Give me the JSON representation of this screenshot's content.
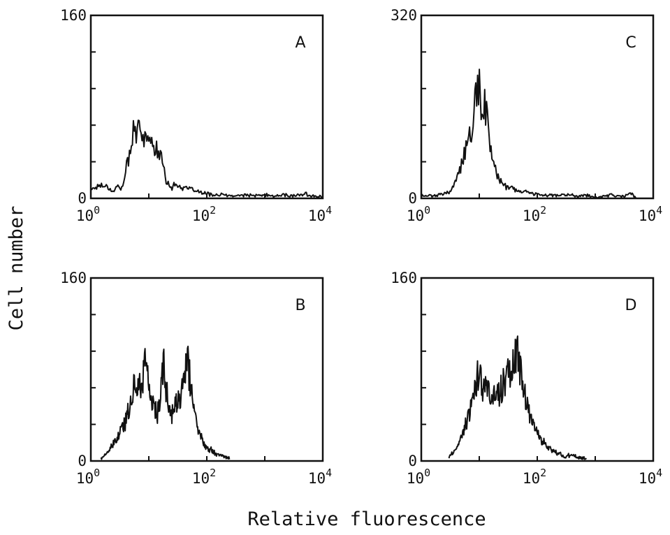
{
  "figure": {
    "y_axis_label": "Cell number",
    "x_axis_label": "Relative fluorescence"
  },
  "chart_data": [
    {
      "type": "area",
      "panel": "A",
      "xscale": "log",
      "xlim": [
        1,
        10000
      ],
      "ylim": [
        0,
        160
      ],
      "y_ticks": [
        "160",
        "0"
      ],
      "x_ticks": [
        {
          "base": "10",
          "exp": "0"
        },
        {
          "base": "10",
          "exp": "2"
        },
        {
          "base": "10",
          "exp": "4"
        }
      ],
      "x": [
        1,
        1.5,
        2,
        2.5,
        3,
        3.5,
        4,
        5,
        5.5,
        6,
        7,
        8,
        9,
        10,
        12,
        14,
        16,
        18,
        20,
        25,
        30,
        40,
        50,
        60,
        80,
        100,
        150,
        200,
        300,
        500,
        700,
        1000,
        1500,
        2000,
        3000,
        5000,
        7000,
        10000
      ],
      "y": [
        8,
        12,
        10,
        6,
        12,
        8,
        25,
        42,
        75,
        55,
        60,
        48,
        62,
        45,
        50,
        42,
        35,
        30,
        15,
        10,
        12,
        9,
        8,
        7,
        5,
        4,
        3,
        3,
        2,
        3,
        2,
        3,
        2,
        3,
        2,
        4,
        2,
        1
      ]
    },
    {
      "type": "area",
      "panel": "B",
      "xscale": "log",
      "xlim": [
        1,
        10000
      ],
      "ylim": [
        0,
        160
      ],
      "y_ticks": [
        "160",
        "0"
      ],
      "x_ticks": [
        {
          "base": "10",
          "exp": "0"
        },
        {
          "base": "10",
          "exp": "2"
        },
        {
          "base": "10",
          "exp": "4"
        }
      ],
      "x": [
        1.5,
        2,
        2.5,
        3,
        4,
        5,
        6,
        7,
        8,
        9,
        10,
        12,
        14,
        16,
        18,
        20,
        25,
        30,
        35,
        40,
        45,
        50,
        60,
        70,
        80,
        100,
        120,
        150,
        200,
        250
      ],
      "y": [
        2,
        8,
        15,
        22,
        35,
        55,
        70,
        65,
        75,
        95,
        60,
        50,
        40,
        55,
        90,
        60,
        40,
        50,
        55,
        65,
        95,
        75,
        45,
        30,
        20,
        12,
        10,
        6,
        4,
        2
      ]
    },
    {
      "type": "area",
      "panel": "C",
      "xscale": "log",
      "xlim": [
        1,
        10000
      ],
      "ylim": [
        0,
        320
      ],
      "y_ticks": [
        "320",
        "0"
      ],
      "x_ticks": [
        {
          "base": "10",
          "exp": "0"
        },
        {
          "base": "10",
          "exp": "2"
        },
        {
          "base": "10",
          "exp": "4"
        }
      ],
      "x": [
        1,
        1.5,
        2,
        3,
        4,
        5,
        6,
        7,
        8,
        9,
        10,
        11,
        12,
        14,
        16,
        18,
        20,
        25,
        30,
        40,
        50,
        70,
        100,
        150,
        200,
        300,
        500,
        700,
        1000,
        1500,
        2000,
        3000,
        4000,
        5000
      ],
      "y": [
        5,
        4,
        6,
        10,
        30,
        60,
        90,
        110,
        140,
        180,
        200,
        150,
        170,
        140,
        80,
        60,
        40,
        25,
        20,
        15,
        12,
        10,
        8,
        6,
        5,
        6,
        4,
        5,
        3,
        4,
        6,
        3,
        10,
        2
      ]
    },
    {
      "type": "area",
      "panel": "D",
      "xscale": "log",
      "xlim": [
        1,
        10000
      ],
      "ylim": [
        0,
        160
      ],
      "y_ticks": [
        "160",
        "0"
      ],
      "x_ticks": [
        {
          "base": "10",
          "exp": "0"
        },
        {
          "base": "10",
          "exp": "2"
        },
        {
          "base": "10",
          "exp": "4"
        }
      ],
      "x": [
        3,
        4,
        5,
        6,
        7,
        8,
        9,
        10,
        12,
        14,
        16,
        18,
        20,
        25,
        30,
        35,
        40,
        45,
        50,
        60,
        70,
        80,
        100,
        120,
        150,
        200,
        250,
        300,
        400,
        500,
        700
      ],
      "y": [
        3,
        10,
        22,
        35,
        45,
        55,
        70,
        80,
        60,
        65,
        55,
        60,
        55,
        65,
        75,
        80,
        85,
        95,
        80,
        60,
        45,
        35,
        25,
        18,
        12,
        8,
        6,
        4,
        5,
        3,
        2
      ]
    }
  ]
}
